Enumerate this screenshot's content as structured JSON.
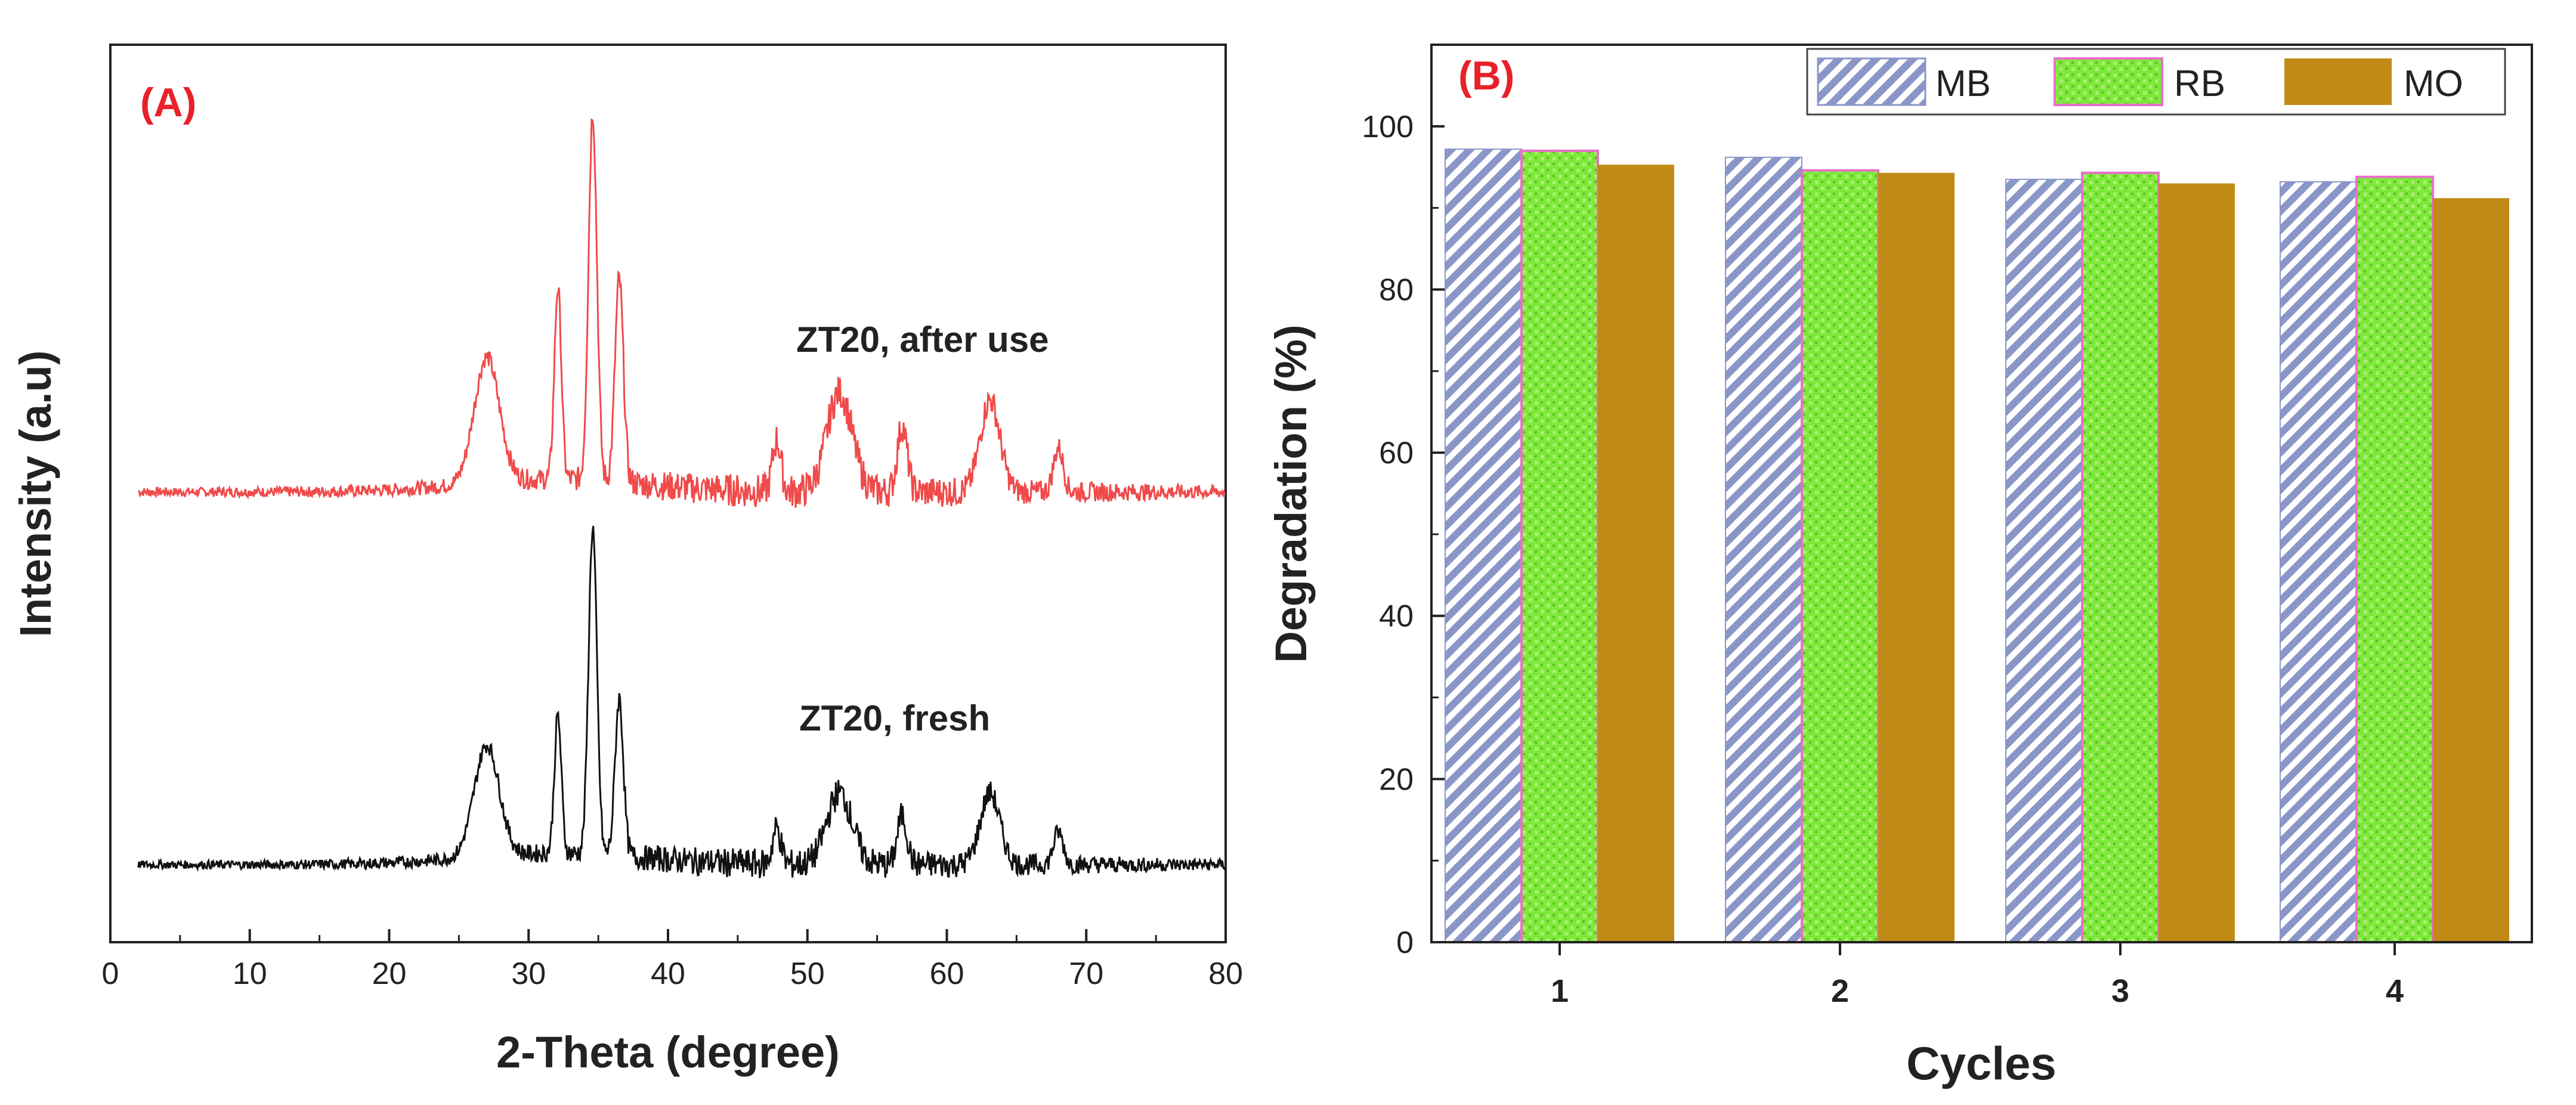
{
  "chart_data": [
    {
      "type": "line",
      "panel_label": "(A)",
      "title": "",
      "xlabel": "2-Theta (degree)",
      "ylabel": "Intensity (a.u)",
      "xlim": [
        0,
        80
      ],
      "xticks": [
        "0",
        "10",
        "20",
        "30",
        "40",
        "50",
        "60",
        "70",
        "80"
      ],
      "x_range": [
        2,
        80
      ],
      "series": [
        {
          "name": "ZT20, after use",
          "color": "#f04a4a",
          "baseline": 0.62,
          "peaks": [
            {
              "x": 27.0,
              "h": 0.34,
              "w": 0.9
            },
            {
              "x": 32.1,
              "h": 0.52,
              "w": 0.25
            },
            {
              "x": 34.6,
              "h": 1.0,
              "w": 0.3
            },
            {
              "x": 36.5,
              "h": 0.55,
              "w": 0.3
            },
            {
              "x": 47.8,
              "h": 0.14,
              "w": 0.3
            },
            {
              "x": 52.3,
              "h": 0.27,
              "w": 0.9
            },
            {
              "x": 56.8,
              "h": 0.18,
              "w": 0.35
            },
            {
              "x": 63.1,
              "h": 0.25,
              "w": 0.7
            },
            {
              "x": 68.0,
              "h": 0.12,
              "w": 0.35
            }
          ]
        },
        {
          "name": "ZT20, fresh",
          "color": "#111111",
          "baseline": 0.0,
          "peaks": [
            {
              "x": 27.0,
              "h": 0.34,
              "w": 0.9
            },
            {
              "x": 32.1,
              "h": 0.42,
              "w": 0.25
            },
            {
              "x": 34.6,
              "h": 1.0,
              "w": 0.3
            },
            {
              "x": 36.5,
              "h": 0.48,
              "w": 0.3
            },
            {
              "x": 47.8,
              "h": 0.11,
              "w": 0.3
            },
            {
              "x": 52.3,
              "h": 0.22,
              "w": 0.9
            },
            {
              "x": 56.8,
              "h": 0.15,
              "w": 0.35
            },
            {
              "x": 63.1,
              "h": 0.22,
              "w": 0.7
            },
            {
              "x": 68.0,
              "h": 0.1,
              "w": 0.35
            }
          ]
        }
      ],
      "annotations": [
        "ZT20, after use",
        "ZT20, fresh"
      ]
    },
    {
      "type": "bar",
      "panel_label": "(B)",
      "title": "",
      "xlabel": "Cycles",
      "ylabel": "Degradation (%)",
      "ylim": [
        0,
        110
      ],
      "yticks": [
        "0",
        "20",
        "40",
        "60",
        "80",
        "100"
      ],
      "categories": [
        "1",
        "2",
        "3",
        "4"
      ],
      "legend_position": "top-right",
      "series": [
        {
          "name": "MB",
          "color": "#8a96c8",
          "pattern": "diagonal-hatch",
          "values": [
            97.2,
            96.2,
            93.5,
            93.2
          ]
        },
        {
          "name": "RB",
          "color": "#7ee83a",
          "pattern": "cross-dots",
          "values": [
            97.0,
            94.6,
            94.3,
            93.8
          ]
        },
        {
          "name": "MO",
          "color": "#c08a16",
          "pattern": "solid",
          "values": [
            95.3,
            94.3,
            93.0,
            91.2
          ]
        }
      ]
    }
  ]
}
